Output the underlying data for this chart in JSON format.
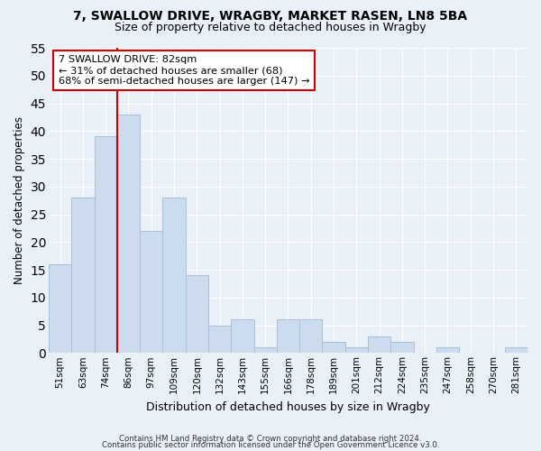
{
  "title1": "7, SWALLOW DRIVE, WRAGBY, MARKET RASEN, LN8 5BA",
  "title2": "Size of property relative to detached houses in Wragby",
  "xlabel": "Distribution of detached houses by size in Wragby",
  "ylabel": "Number of detached properties",
  "categories": [
    "51sqm",
    "63sqm",
    "74sqm",
    "86sqm",
    "97sqm",
    "109sqm",
    "120sqm",
    "132sqm",
    "143sqm",
    "155sqm",
    "166sqm",
    "178sqm",
    "189sqm",
    "201sqm",
    "212sqm",
    "224sqm",
    "235sqm",
    "247sqm",
    "258sqm",
    "270sqm",
    "281sqm"
  ],
  "values": [
    16,
    28,
    39,
    43,
    22,
    28,
    14,
    5,
    6,
    1,
    6,
    6,
    2,
    1,
    3,
    2,
    0,
    1,
    0,
    0,
    1
  ],
  "bar_color": "#ccdcee",
  "bar_edge_color": "#a8c0d8",
  "vline_color": "#cc0000",
  "annotation_text": "7 SWALLOW DRIVE: 82sqm\n← 31% of detached houses are smaller (68)\n68% of semi-detached houses are larger (147) →",
  "annotation_box_color": "#ffffff",
  "annotation_box_edge": "#cc0000",
  "ylim": [
    0,
    55
  ],
  "yticks": [
    0,
    5,
    10,
    15,
    20,
    25,
    30,
    35,
    40,
    45,
    50,
    55
  ],
  "background_color": "#eaf0f8",
  "grid_color": "#ffffff",
  "footer1": "Contains HM Land Registry data © Crown copyright and database right 2024.",
  "footer2": "Contains public sector information licensed under the Open Government Licence v3.0."
}
